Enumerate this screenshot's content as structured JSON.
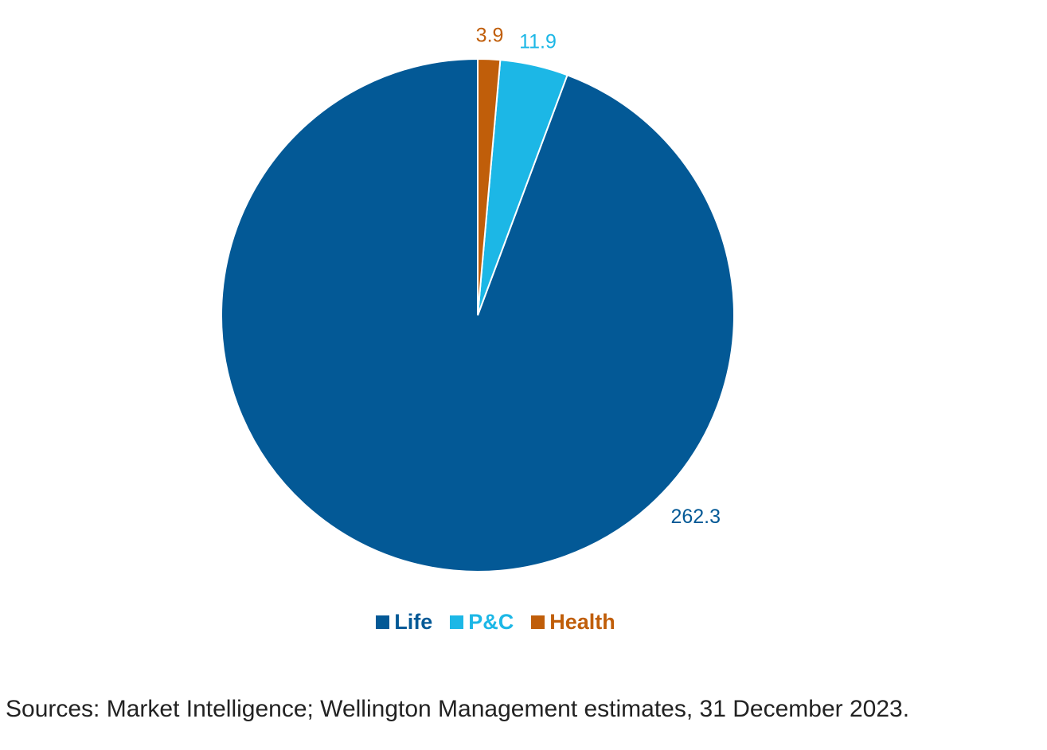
{
  "chart_data": {
    "type": "pie",
    "title": "",
    "categories": [
      "Life",
      "P&C",
      "Health"
    ],
    "values": [
      262.3,
      11.9,
      3.9
    ],
    "value_labels": [
      "262.3",
      "11.9",
      "3.9"
    ],
    "colors": [
      "#035996",
      "#1CB7E6",
      "#C05E0A"
    ],
    "start_angle_deg": 0,
    "direction": "counterclockwise-from-top",
    "legend_position": "bottom-center"
  },
  "legend": {
    "items": [
      {
        "label": "Life",
        "color": "#035996"
      },
      {
        "label": "P&C",
        "color": "#1CB7E6"
      },
      {
        "label": "Health",
        "color": "#C05E0A"
      }
    ]
  },
  "source_note": "Sources: Market Intelligence; Wellington Management estimates, 31 December 2023."
}
